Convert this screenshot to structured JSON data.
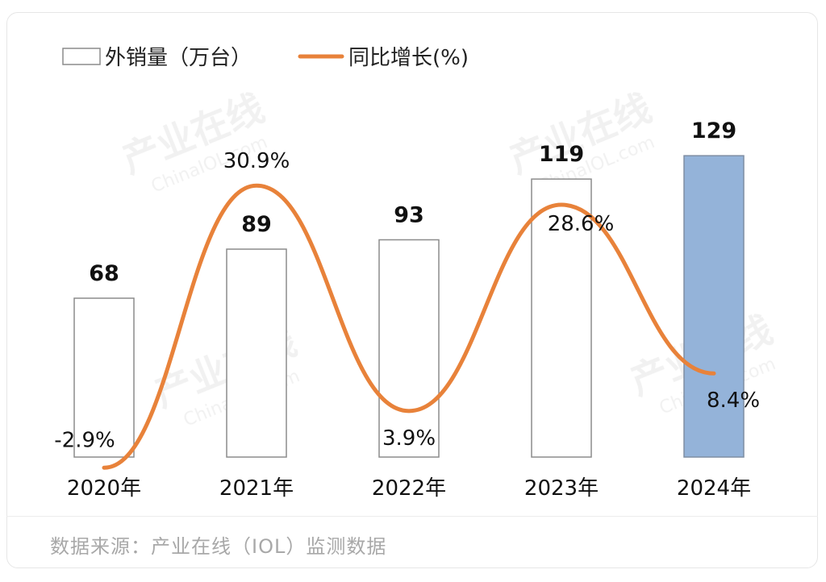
{
  "chart_data": {
    "type": "bar",
    "categories": [
      "2020年",
      "2021年",
      "2022年",
      "2023年",
      "2024年"
    ],
    "series": [
      {
        "name": "外销量（万台）",
        "kind": "bar",
        "values": [
          68,
          89,
          93,
          119,
          129
        ],
        "labels": [
          "68",
          "89",
          "93",
          "119",
          "129"
        ]
      },
      {
        "name": "同比增长(%)",
        "kind": "line",
        "values": [
          -2.9,
          30.9,
          3.9,
          28.6,
          8.4
        ],
        "labels": [
          "-2.9%",
          "30.9%",
          "3.9%",
          "28.6%",
          "8.4%"
        ]
      }
    ],
    "legend_position": "top-left",
    "colors": {
      "bar_outline": "#8c8c8c",
      "bar_fill": "#ffffff",
      "highlight_fill": "#94b3d9",
      "highlight_outline": "#7f8ea3",
      "line": "#e8823a"
    },
    "highlight_index": 4,
    "bar_ylim": [
      0,
      157
    ],
    "line_ylim": [
      -5,
      40
    ]
  },
  "source": "数据来源：产业在线（IOL）监测数据",
  "watermark": {
    "brand": "产业在线",
    "domain": "ChinaIOL.com"
  }
}
